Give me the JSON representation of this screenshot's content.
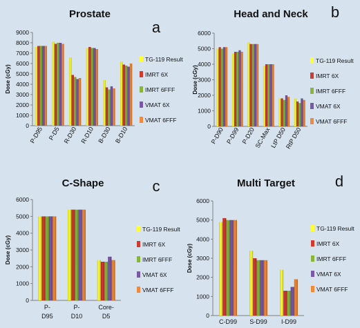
{
  "legend_labels": [
    "TG-119 Result",
    "IMRT 6X",
    "IMRT 6FFF",
    "VMAT 6X",
    "VMAT 6FFF"
  ],
  "colors": {
    "background": "#d6e3ee",
    "series": [
      "#ffff33",
      "#d03a2f",
      "#8ab53b",
      "#7a57a8",
      "#f08a3a"
    ],
    "axis": "#7f7f7f",
    "text": "#111111"
  },
  "panel_letters": [
    "a",
    "b",
    "c",
    "d"
  ],
  "chart_data": [
    {
      "type": "bar",
      "title": "Prostate",
      "ylabel": "Dose (cGy)",
      "ylim": [
        0,
        9000
      ],
      "yticks": [
        0,
        1000,
        2000,
        3000,
        4000,
        5000,
        6000,
        7000,
        8000,
        9000
      ],
      "categories": [
        "P-D95",
        "P-D5",
        "R-D30",
        "R-D10",
        "B-D30",
        "B-D10"
      ],
      "series": [
        {
          "name": "TG-119 Result",
          "values": [
            7600,
            8100,
            6600,
            7500,
            4400,
            6200
          ]
        },
        {
          "name": "IMRT 6X",
          "values": [
            7700,
            7900,
            4900,
            7600,
            3700,
            5900
          ]
        },
        {
          "name": "IMRT 6FFF",
          "values": [
            7700,
            8000,
            4700,
            7500,
            3500,
            5800
          ]
        },
        {
          "name": "VMAT 6X",
          "values": [
            7700,
            8000,
            4500,
            7500,
            3800,
            5700
          ]
        },
        {
          "name": "VMAT 6FFF",
          "values": [
            7700,
            7900,
            4600,
            7400,
            3600,
            6000
          ]
        }
      ]
    },
    {
      "type": "bar",
      "title": "Head and Neck",
      "ylabel": "Dose (cGy)",
      "ylim": [
        0,
        6000
      ],
      "yticks": [
        0,
        1000,
        2000,
        3000,
        4000,
        5000,
        6000
      ],
      "categories": [
        "P-D90",
        "P-D99",
        "P-D20",
        "SC-Max",
        "LtP D50",
        "RtP D50"
      ],
      "series": [
        {
          "name": "TG-119 Result",
          "values": [
            5000,
            4700,
            5400,
            3900,
            1800,
            1800
          ]
        },
        {
          "name": "IMRT 6X",
          "values": [
            5100,
            4800,
            5300,
            4000,
            1800,
            1600
          ]
        },
        {
          "name": "IMRT 6FFF",
          "values": [
            5000,
            4800,
            5300,
            4000,
            1700,
            1500
          ]
        },
        {
          "name": "VMAT 6X",
          "values": [
            5100,
            4900,
            5300,
            4000,
            2000,
            1800
          ]
        },
        {
          "name": "VMAT 6FFF",
          "values": [
            5100,
            4800,
            5300,
            4000,
            1900,
            1700
          ]
        }
      ]
    },
    {
      "type": "bar",
      "title": "C-Shape",
      "ylabel": "Dose (cGy)",
      "ylim": [
        0,
        6000
      ],
      "yticks": [
        0,
        1000,
        2000,
        3000,
        4000,
        5000,
        6000
      ],
      "categories": [
        "P-D95",
        "P-D10",
        "Core-D5"
      ],
      "series": [
        {
          "name": "TG-119 Result",
          "values": [
            5000,
            5400,
            2400
          ]
        },
        {
          "name": "IMRT 6X",
          "values": [
            5000,
            5400,
            2300
          ]
        },
        {
          "name": "IMRT 6FFF",
          "values": [
            5000,
            5400,
            2300
          ]
        },
        {
          "name": "VMAT 6X",
          "values": [
            5000,
            5400,
            2600
          ]
        },
        {
          "name": "VMAT 6FFF",
          "values": [
            5000,
            5400,
            2400
          ]
        }
      ]
    },
    {
      "type": "bar",
      "title": "Multi Target",
      "ylabel": "Dose (cGy)",
      "ylim": [
        0,
        6000
      ],
      "yticks": [
        0,
        1000,
        2000,
        3000,
        4000,
        5000,
        6000
      ],
      "categories": [
        "C-D99",
        "S-D99",
        "I-D99"
      ],
      "series": [
        {
          "name": "TG-119 Result",
          "values": [
            4900,
            3400,
            2400
          ]
        },
        {
          "name": "IMRT 6X",
          "values": [
            5100,
            3000,
            1300
          ]
        },
        {
          "name": "IMRT 6FFF",
          "values": [
            5000,
            2900,
            1300
          ]
        },
        {
          "name": "VMAT 6X",
          "values": [
            5000,
            2900,
            1500
          ]
        },
        {
          "name": "VMAT 6FFF",
          "values": [
            5000,
            2900,
            1900
          ]
        }
      ]
    }
  ]
}
